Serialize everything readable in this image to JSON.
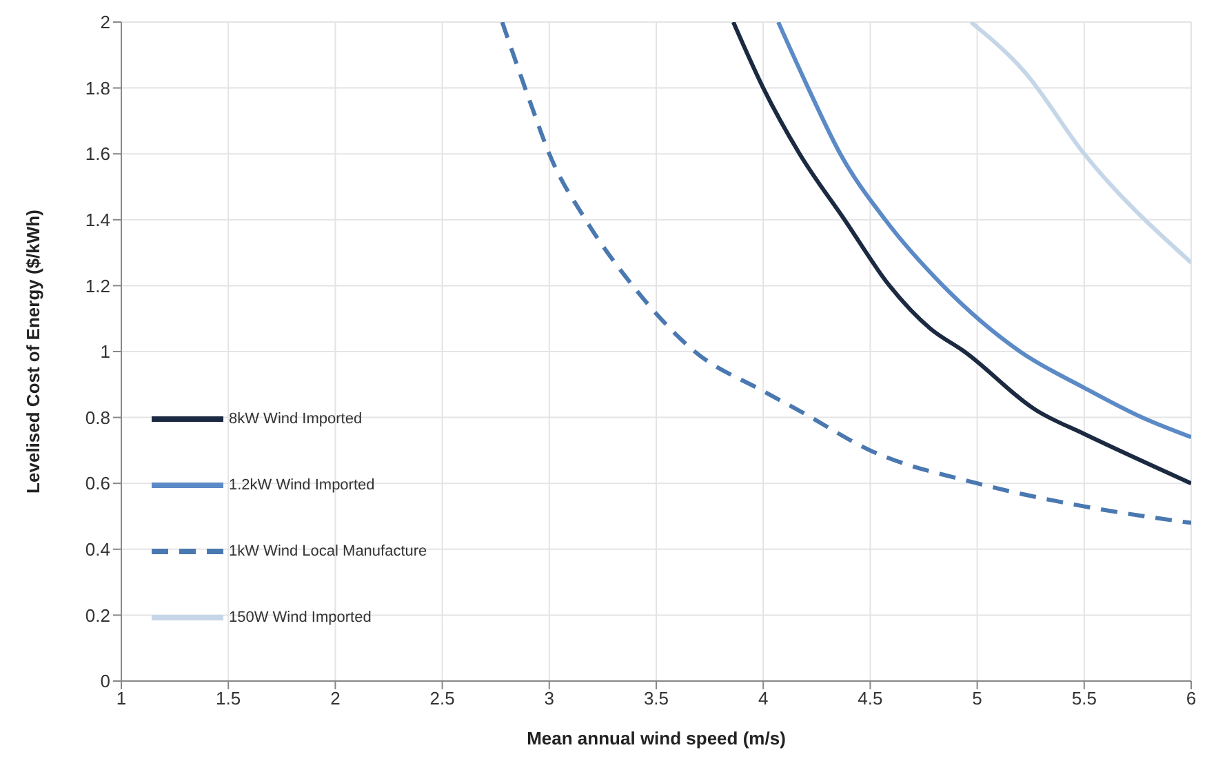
{
  "chart_data": {
    "type": "line",
    "xlabel": "Mean annual wind speed (m/s)",
    "ylabel": "Levelised Cost of Energy ($/kWh)",
    "xlim": [
      1,
      6
    ],
    "xticks": [
      1,
      1.5,
      2,
      2.5,
      3,
      3.5,
      4,
      4.5,
      5,
      5.5,
      6
    ],
    "ylim": [
      0,
      2
    ],
    "yticks": [
      0,
      0.2,
      0.4,
      0.6,
      0.8,
      1,
      1.2,
      1.4,
      1.6,
      1.8,
      2
    ],
    "grid": true,
    "legend": "bottom left",
    "marker": "none",
    "series": [
      {
        "name": "8kW Wind Imported",
        "color": "#1b2a41",
        "line_style": "solid",
        "x": [
          3.86,
          4.0,
          4.17,
          4.38,
          4.59,
          4.78,
          4.94,
          5.28,
          5.5,
          6
        ],
        "values": [
          2,
          1.8,
          1.6,
          1.4,
          1.2,
          1.07,
          1.0,
          0.82,
          0.75,
          0.6
        ]
      },
      {
        "name": "1.2kW Wind Imported",
        "color": "#5b8ac6",
        "line_style": "solid",
        "x": [
          4.07,
          4.21,
          4.36,
          4.57,
          4.84,
          5.2,
          5.5,
          5.77,
          6
        ],
        "values": [
          2,
          1.8,
          1.6,
          1.4,
          1.2,
          1.0,
          0.89,
          0.8,
          0.74
        ]
      },
      {
        "name": "1kW Wind Local Manufacture",
        "color": "#4a78b0",
        "line_style": "dashed",
        "x": [
          2.78,
          2.92,
          3.0,
          3.17,
          3.39,
          3.68,
          4.0,
          4.17,
          4.5,
          5.0,
          5.5,
          6
        ],
        "values": [
          2,
          1.74,
          1.6,
          1.4,
          1.2,
          1.0,
          0.88,
          0.82,
          0.7,
          0.6,
          0.53,
          0.48
        ]
      },
      {
        "name": "150W Wind Imported",
        "color": "#c5d6e8",
        "line_style": "solid",
        "x": [
          4.97,
          5.22,
          5.5,
          6
        ],
        "values": [
          2,
          1.85,
          1.6,
          1.27
        ]
      }
    ]
  }
}
